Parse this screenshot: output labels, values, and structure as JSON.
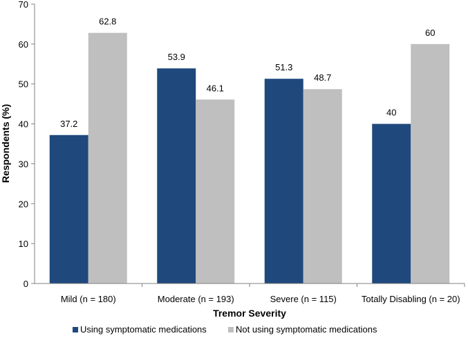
{
  "chart_data": {
    "type": "bar",
    "title": "",
    "xlabel": "Tremor Severity",
    "ylabel": "Respondents (%)",
    "ylim": [
      0,
      70
    ],
    "yticks": [
      0,
      10,
      20,
      30,
      40,
      50,
      60,
      70
    ],
    "categories": [
      "Mild (n = 180)",
      "Moderate (n = 193)",
      "Severe (n = 115)",
      "Totally Disabling (n = 20)"
    ],
    "series": [
      {
        "name": "Using symptomatic medications",
        "color": "#1f497d",
        "values": [
          37.2,
          53.9,
          51.3,
          40
        ],
        "labels": [
          "37.2",
          "53.9",
          "51.3",
          "40"
        ]
      },
      {
        "name": "Not using symptomatic medications",
        "color": "#bfbfbf",
        "values": [
          62.8,
          46.1,
          48.7,
          60
        ],
        "labels": [
          "62.8",
          "46.1",
          "48.7",
          "60"
        ]
      }
    ],
    "legend_position": "bottom",
    "grid": false
  }
}
